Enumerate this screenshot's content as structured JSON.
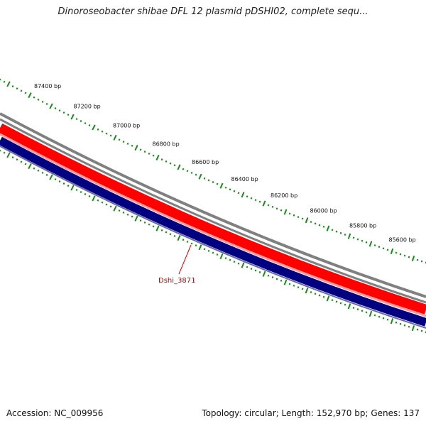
{
  "title": "Dinoroseobacter shibae DFL 12 plasmid pDSHI02, complete sequ...",
  "footer": {
    "accession": "Accession: NC_009956",
    "summary": "Topology: circular; Length: 152,970 bp; Genes: 137"
  },
  "ruler": {
    "labels": [
      "87400 bp",
      "87200 bp",
      "87000 bp",
      "86800 bp",
      "86600 bp",
      "86400 bp",
      "86200 bp",
      "86000 bp",
      "85800 bp",
      "85600 bp"
    ],
    "tick_color": "#1a8a1a"
  },
  "tracks": {
    "outer_color": "#808080",
    "forward_color": "#ff0000",
    "forward_light": "#ff9a9a",
    "reverse_color": "#000080",
    "reverse_light": "#6a6aaa"
  },
  "gene_label": "Dshi_3871"
}
